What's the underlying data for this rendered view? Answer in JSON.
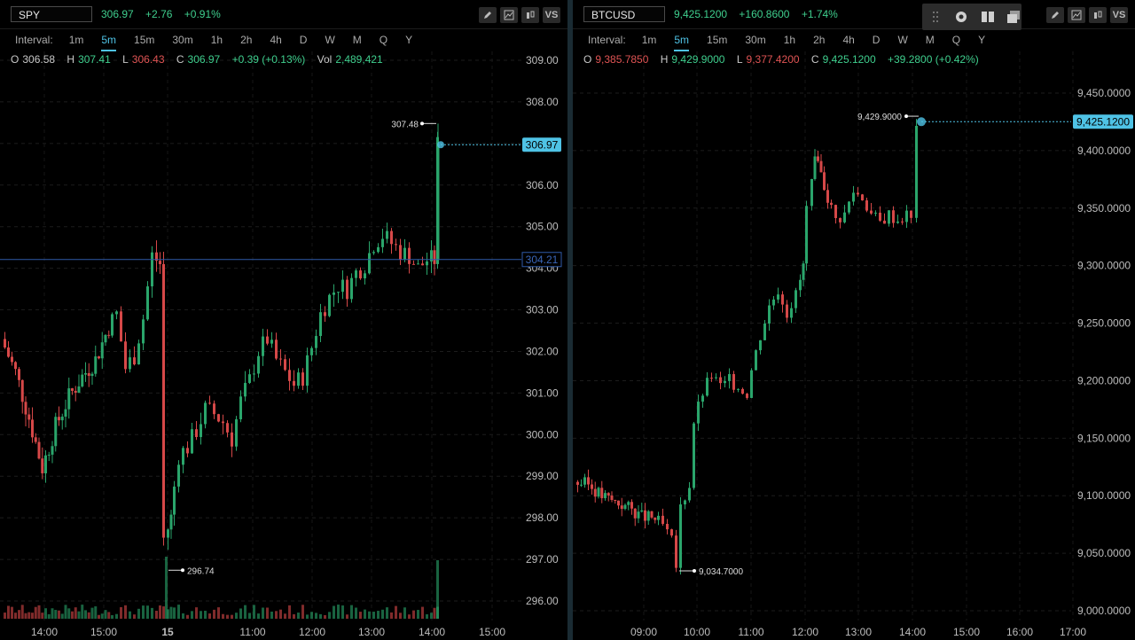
{
  "left": {
    "symbol": "SPY",
    "last": "306.97",
    "change": "+2.76",
    "change_pct": "+0.91%",
    "interval_label": "Interval:",
    "intervals": [
      "1m",
      "5m",
      "15m",
      "30m",
      "1h",
      "2h",
      "4h",
      "D",
      "W",
      "M",
      "Q",
      "Y"
    ],
    "active_interval": "5m",
    "ohlc": {
      "o": "306.58",
      "h": "307.41",
      "l": "306.43",
      "c": "306.97",
      "chg": "+0.39 (+0.13%)",
      "vol": "2,489,421"
    },
    "ohlc_labels": {
      "o": "O",
      "h": "H",
      "l": "L",
      "c": "C",
      "vol": "Vol"
    },
    "price_axis": [
      "309.00",
      "308.00",
      "307.00",
      "306.00",
      "305.00",
      "304.00",
      "303.00",
      "302.00",
      "301.00",
      "300.00",
      "299.00",
      "298.00",
      "297.00",
      "296.00"
    ],
    "time_axis": [
      "14:00",
      "15:00",
      "15",
      "11:00",
      "12:00",
      "13:00",
      "14:00",
      "15:00"
    ],
    "last_price_tag": "306.97",
    "ref_line_tag": "304.21",
    "high_marker": "307.48",
    "low_marker": "296.74"
  },
  "right": {
    "symbol": "BTCUSD",
    "last": "9,425.1200",
    "change": "+160.8600",
    "change_pct": "+1.74%",
    "interval_label": "Interval:",
    "intervals": [
      "1m",
      "5m",
      "15m",
      "30m",
      "1h",
      "2h",
      "4h",
      "D",
      "W",
      "M",
      "Q",
      "Y"
    ],
    "active_interval": "5m",
    "ohlc": {
      "o": "9,385.7850",
      "h": "9,429.9000",
      "l": "9,377.4200",
      "c": "9,425.1200",
      "chg": "+39.2800 (+0.42%)"
    },
    "ohlc_labels": {
      "o": "O",
      "h": "H",
      "l": "L",
      "c": "C"
    },
    "price_axis": [
      "9,450.0000",
      "9,400.0000",
      "9,350.0000",
      "9,300.0000",
      "9,250.0000",
      "9,200.0000",
      "9,150.0000",
      "9,100.0000",
      "9,050.0000",
      "9,000.0000"
    ],
    "time_axis": [
      "09:00",
      "10:00",
      "11:00",
      "12:00",
      "13:00",
      "14:00",
      "15:00",
      "16:00",
      "17:00"
    ],
    "last_price_tag": "9,425.1200",
    "high_marker": "9,429.9000",
    "low_marker": "9,034.7000"
  },
  "toolbar_icons": [
    "pencil-icon",
    "line-chart-icon",
    "candles-icon",
    "vs-icon"
  ],
  "toolbar_vs_label": "VS",
  "float_toolbar_icons": [
    "drag-handle-icon",
    "settings-icon",
    "split-layout-icon",
    "layers-icon"
  ],
  "colors": {
    "up": "#2aa56b",
    "down": "#d64848",
    "accent": "#4fc3e6",
    "ref_line": "#2f5aa8",
    "bg": "#000000"
  }
}
